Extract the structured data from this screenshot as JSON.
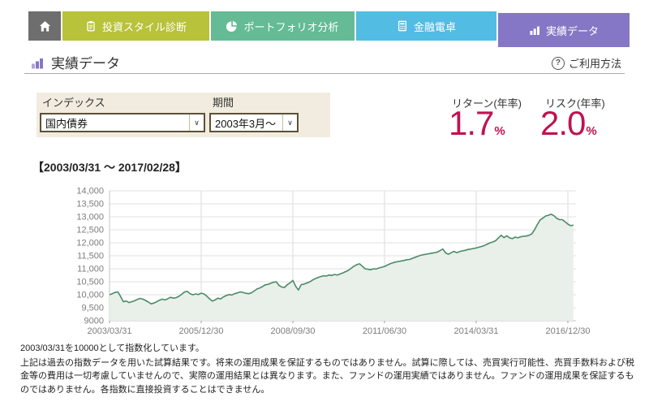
{
  "nav": {
    "home": {
      "icon": "home-icon",
      "color": "#6e6e6e"
    },
    "tabs": [
      {
        "label": "投資スタイル診断",
        "icon": "clipboard-icon",
        "color": "#b8c23a",
        "active": false
      },
      {
        "label": "ポートフォリオ分析",
        "icon": "pie-chart-icon",
        "color": "#64bb95",
        "active": false
      },
      {
        "label": "金融電卓",
        "icon": "calculator-icon",
        "color": "#52bce2",
        "active": false
      },
      {
        "label": "実績データ",
        "icon": "bar-chart-icon",
        "color": "#8577c5",
        "active": true
      }
    ]
  },
  "header": {
    "title": "実績データ",
    "title_icon": "bar-chart-icon",
    "help_label": "ご利用方法",
    "help_icon": "question-circle-icon"
  },
  "filters": {
    "index_label": "インデックス",
    "index_value": "国内債券",
    "period_label": "期間",
    "period_value": "2003年3月～"
  },
  "metrics": {
    "return_label": "リターン(年率)",
    "return_value": "1.7",
    "return_unit": "%",
    "risk_label": "リスク(年率)",
    "risk_value": "2.0",
    "risk_unit": "%",
    "accent_color": "#c01252"
  },
  "period_range": "【2003/03/31 ～ 2017/02/28】",
  "chart_data": {
    "type": "area",
    "title": "",
    "xlabel": "",
    "ylabel": "",
    "x_start": "2003/03",
    "x_end": "2017/02",
    "frequency": "monthly",
    "base_note": "2003/03/31 = 10000",
    "ylim": [
      9000,
      14000
    ],
    "grid": true,
    "legend": "none",
    "line_color": "#4a8b68",
    "fill_color": "#e9efe9",
    "x_tick_labels": [
      "2003/03/31",
      "2005/12/30",
      "2008/09/30",
      "2011/06/30",
      "2014/03/31",
      "2016/12/30"
    ],
    "x_tick_month_index": [
      0,
      33,
      66,
      99,
      132,
      165
    ],
    "y_tick_labels": [
      "14,000",
      "13,500",
      "13,000",
      "12,500",
      "12,000",
      "11,500",
      "11,000",
      "10,500",
      "10,000",
      "9,500",
      "9000"
    ],
    "values": [
      10000,
      10040,
      10090,
      10110,
      9930,
      9730,
      9760,
      9700,
      9730,
      9770,
      9820,
      9860,
      9830,
      9780,
      9720,
      9650,
      9680,
      9730,
      9790,
      9830,
      9800,
      9850,
      9900,
      9870,
      9890,
      9940,
      10020,
      10110,
      10130,
      10040,
      10000,
      10030,
      10010,
      10060,
      10030,
      9950,
      9840,
      9760,
      9800,
      9870,
      9840,
      9920,
      9970,
      10010,
      9990,
      10040,
      10070,
      10110,
      10090,
      10060,
      10040,
      10070,
      10140,
      10220,
      10260,
      10310,
      10380,
      10400,
      10440,
      10480,
      10500,
      10360,
      10300,
      10280,
      10390,
      10460,
      10550,
      10330,
      10180,
      10390,
      10410,
      10450,
      10490,
      10560,
      10620,
      10660,
      10700,
      10730,
      10720,
      10760,
      10740,
      10780,
      10760,
      10800,
      10840,
      10890,
      10940,
      11020,
      11100,
      11160,
      11190,
      11100,
      11000,
      10980,
      10960,
      11000,
      10990,
      11030,
      11060,
      11090,
      11140,
      11190,
      11230,
      11260,
      11280,
      11300,
      11320,
      11350,
      11360,
      11400,
      11440,
      11480,
      11520,
      11540,
      11560,
      11580,
      11600,
      11620,
      11640,
      11700,
      11760,
      11610,
      11560,
      11620,
      11670,
      11620,
      11660,
      11690,
      11710,
      11740,
      11760,
      11780,
      11800,
      11830,
      11860,
      11900,
      11950,
      12000,
      12030,
      12080,
      12190,
      12290,
      12200,
      12270,
      12190,
      12160,
      12220,
      12190,
      12230,
      12250,
      12260,
      12290,
      12340,
      12500,
      12700,
      12880,
      12950,
      13030,
      13060,
      13100,
      13040,
      12940,
      12890,
      12890,
      12810,
      12720,
      12660,
      12680
    ]
  },
  "footnote": {
    "line1": "2003/03/31を10000として指数化しています。",
    "line2": "上記は過去の指数データを用いた試算結果です。将来の運用成果を保証するものではありません。試算に際しては、売買実行可能性、売買手数料および税金等の費用は一切考慮していませんので、実際の運用結果とは異なります。また、ファンドの運用実績ではありません。ファンドの運用成果を保証するものではありません。各指数に直接投資することはできません。"
  }
}
